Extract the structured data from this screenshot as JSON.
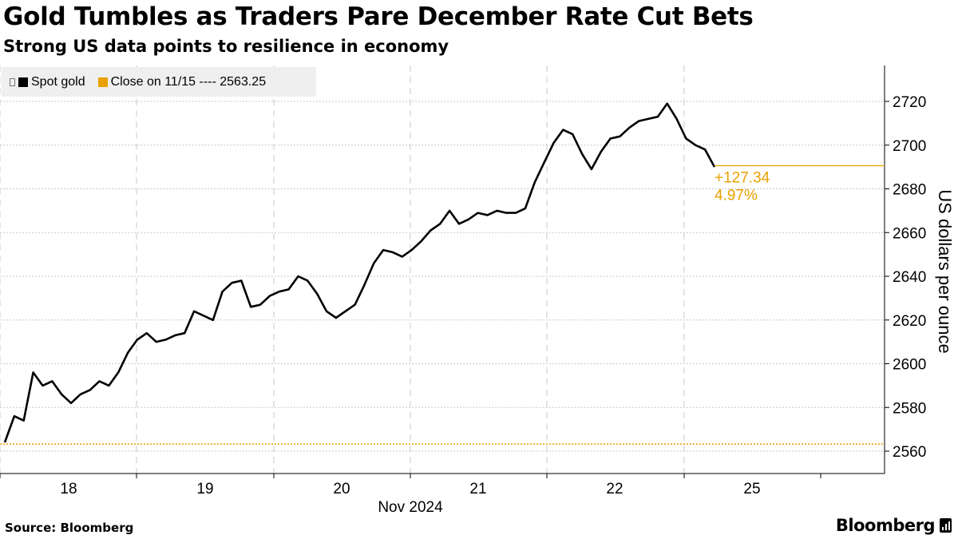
{
  "chart_data": {
    "type": "line",
    "title": "Gold Tumbles as Traders Pare December Rate Cut Bets",
    "subtitle": "Strong US data points to resilience in economy",
    "ylabel": "US dollars per ounce",
    "xlabel": "Nov 2024",
    "ylim": [
      2550,
      2730
    ],
    "y_ticks": [
      2560,
      2580,
      2600,
      2620,
      2640,
      2660,
      2680,
      2700,
      2720
    ],
    "x_range": [
      "2024-11-17T18:00",
      "2024-11-25T23:59"
    ],
    "x_ticks": [
      {
        "label": "18",
        "date": "2024-11-18"
      },
      {
        "label": "19",
        "date": "2024-11-19"
      },
      {
        "label": "20",
        "date": "2024-11-20"
      },
      {
        "label": "21",
        "date": "2024-11-21"
      },
      {
        "label": "22",
        "date": "2024-11-22"
      },
      {
        "label": "25",
        "date": "2024-11-25"
      }
    ],
    "grid": true,
    "legend_position": "top-left",
    "series": [
      {
        "name": "Spot gold",
        "color": "#000000",
        "points": [
          [
            "2024-11-17T18:00",
            2564
          ],
          [
            "2024-11-17T19:00",
            2576
          ],
          [
            "2024-11-17T20:30",
            2574
          ],
          [
            "2024-11-17T22:00",
            2596
          ],
          [
            "2024-11-18T00:00",
            2590
          ],
          [
            "2024-11-18T02:00",
            2592
          ],
          [
            "2024-11-18T04:00",
            2586
          ],
          [
            "2024-11-18T06:00",
            2582
          ],
          [
            "2024-11-18T08:00",
            2586
          ],
          [
            "2024-11-18T10:00",
            2588
          ],
          [
            "2024-11-18T12:00",
            2592
          ],
          [
            "2024-11-18T14:00",
            2590
          ],
          [
            "2024-11-18T16:00",
            2596
          ],
          [
            "2024-11-18T17:00",
            2605
          ],
          [
            "2024-11-18T18:30",
            2611
          ],
          [
            "2024-11-18T20:00",
            2614
          ],
          [
            "2024-11-19T00:00",
            2610
          ],
          [
            "2024-11-19T04:00",
            2611
          ],
          [
            "2024-11-19T08:00",
            2613
          ],
          [
            "2024-11-19T11:00",
            2614
          ],
          [
            "2024-11-19T14:00",
            2624
          ],
          [
            "2024-11-19T18:00",
            2622
          ],
          [
            "2024-11-19T21:00",
            2620
          ],
          [
            "2024-11-19T23:00",
            2633
          ],
          [
            "2024-11-20T01:00",
            2637
          ],
          [
            "2024-11-20T03:00",
            2638
          ],
          [
            "2024-11-20T06:00",
            2626
          ],
          [
            "2024-11-20T08:00",
            2627
          ],
          [
            "2024-11-20T10:00",
            2631
          ],
          [
            "2024-11-20T13:00",
            2633
          ],
          [
            "2024-11-20T16:00",
            2634
          ],
          [
            "2024-11-20T19:00",
            2640
          ],
          [
            "2024-11-20T22:00",
            2638
          ],
          [
            "2024-11-21T00:00",
            2632
          ],
          [
            "2024-11-21T02:00",
            2624
          ],
          [
            "2024-11-21T03:30",
            2621
          ],
          [
            "2024-11-21T06:00",
            2624
          ],
          [
            "2024-11-21T08:00",
            2627
          ],
          [
            "2024-11-21T10:00",
            2636
          ],
          [
            "2024-11-21T12:00",
            2646
          ],
          [
            "2024-11-21T14:00",
            2652
          ],
          [
            "2024-11-21T17:00",
            2651
          ],
          [
            "2024-11-21T20:00",
            2649
          ],
          [
            "2024-11-21T23:00",
            2652
          ],
          [
            "2024-11-22T02:00",
            2656
          ],
          [
            "2024-11-22T05:00",
            2661
          ],
          [
            "2024-11-22T08:00",
            2664
          ],
          [
            "2024-11-22T10:00",
            2670
          ],
          [
            "2024-11-22T12:00",
            2664
          ],
          [
            "2024-11-22T14:00",
            2666
          ],
          [
            "2024-11-22T16:00",
            2669
          ],
          [
            "2024-11-22T18:00",
            2668
          ],
          [
            "2024-11-22T20:00",
            2670
          ],
          [
            "2024-11-22T22:00",
            2669
          ],
          [
            "2024-11-23T00:00",
            2669
          ],
          [
            "2024-11-23T02:00",
            2671
          ],
          [
            "2024-11-23T05:00",
            2683
          ],
          [
            "2024-11-23T08:00",
            2692
          ],
          [
            "2024-11-23T11:00",
            2701
          ],
          [
            "2024-11-23T13:00",
            2707
          ],
          [
            "2024-11-23T15:00",
            2705
          ],
          [
            "2024-11-23T17:00",
            2696
          ],
          [
            "2024-11-23T19:00",
            2689
          ],
          [
            "2024-11-23T21:00",
            2697
          ],
          [
            "2024-11-24T00:00",
            2703
          ],
          [
            "2024-11-24T03:00",
            2704
          ],
          [
            "2024-11-24T06:00",
            2708
          ],
          [
            "2024-11-24T09:00",
            2711
          ],
          [
            "2024-11-24T11:00",
            2712
          ],
          [
            "2024-11-24T13:00",
            2713
          ],
          [
            "2024-11-24T14:00",
            2719
          ],
          [
            "2024-11-24T15:00",
            2712
          ],
          [
            "2024-11-24T16:00",
            2703
          ],
          [
            "2024-11-24T18:00",
            2700
          ],
          [
            "2024-11-24T20:00",
            2698
          ],
          [
            "2024-11-24T23:59",
            2690
          ]
        ]
      }
    ],
    "reference_line": {
      "label": "Close on 11/15",
      "value": 2563.25,
      "display_value": "2563.25",
      "color": "#e8a100"
    },
    "annotation": {
      "change": "+127.34",
      "percent": "4.97%",
      "value": 2690.59,
      "color": "#e8a100"
    },
    "legend": [
      {
        "label": "Spot gold",
        "color": "#000000"
      },
      {
        "label": "Close on 11/15 ---- 2563.25",
        "color": "#e8a100"
      }
    ]
  },
  "footer": {
    "source": "Source: Bloomberg",
    "brand": "Bloomberg"
  }
}
